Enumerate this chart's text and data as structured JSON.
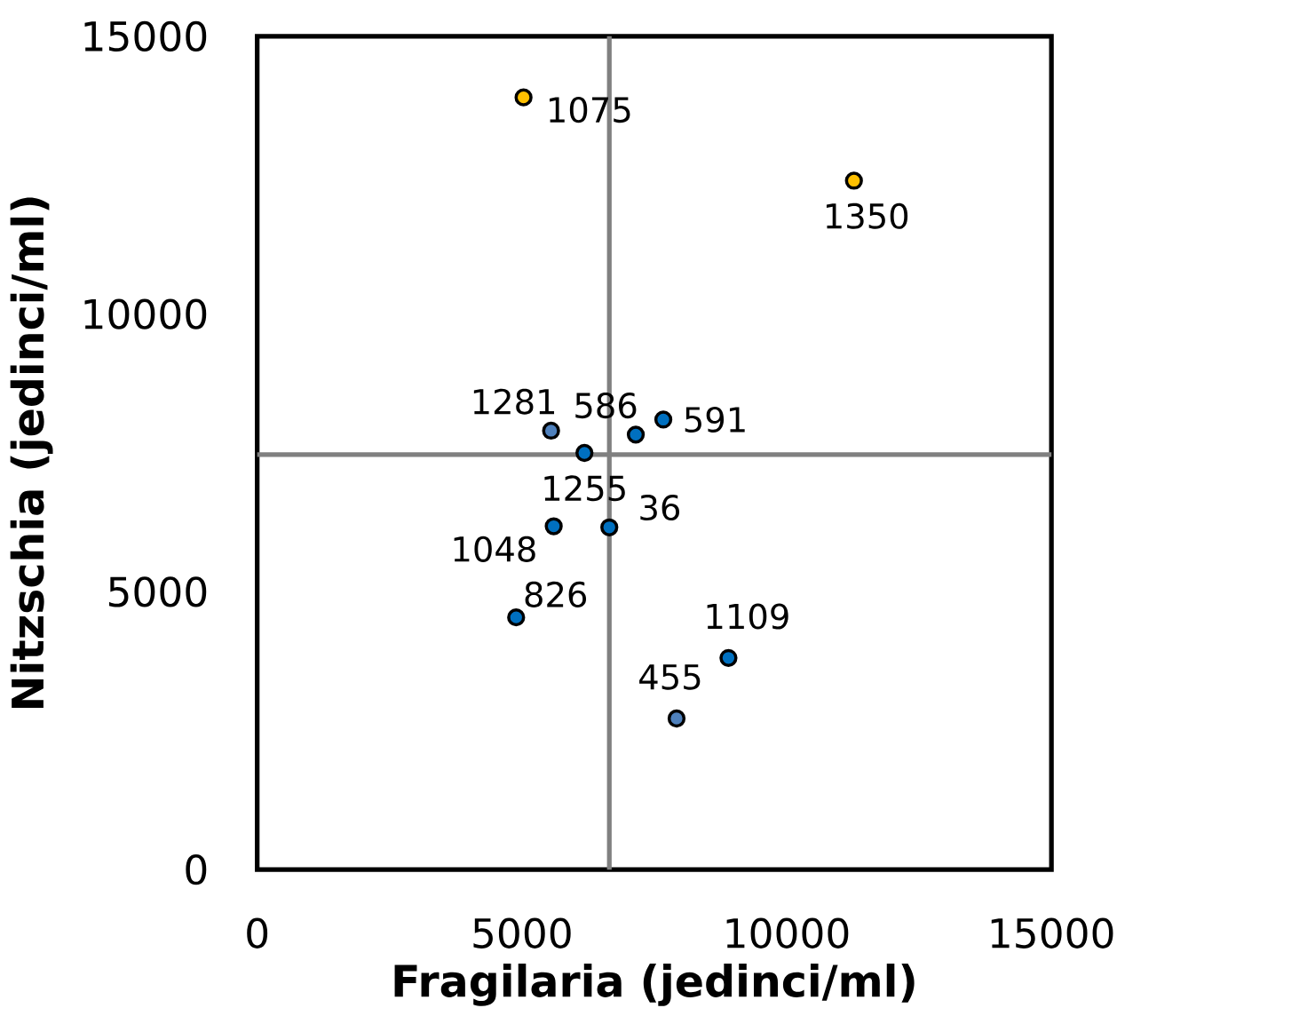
{
  "chart_data": {
    "type": "scatter",
    "xlabel": "Fragilaria (jedinci/ml)",
    "ylabel": "Nitzschia (jedinci/ml)",
    "x": [
      5030,
      11270,
      5550,
      6180,
      7150,
      7670,
      5600,
      6650,
      4890,
      8900,
      7920
    ],
    "values": [
      13900,
      12400,
      7900,
      7500,
      7830,
      8100,
      6180,
      6160,
      4540,
      3810,
      2720
    ],
    "colors": [
      "#ffc000",
      "#ffc000",
      "#4f81bd",
      "#0070c0",
      "#0070c0",
      "#0070c0",
      "#0070c0",
      "#0070c0",
      "#0070c0",
      "#0070c0",
      "#4f81bd"
    ],
    "marker": "circle",
    "xlim": [
      0,
      15000
    ],
    "ylim": [
      0,
      15000
    ],
    "xticks": [
      0,
      5000,
      10000,
      15000
    ],
    "yticks": [
      0,
      5000,
      10000,
      15000
    ],
    "grid": false,
    "ref_lines": [
      {
        "axis": "x",
        "value": 6650,
        "color": "#808080"
      },
      {
        "axis": "y",
        "value": 7470,
        "color": "#808080"
      }
    ],
    "annotations": [
      {
        "text": "1075",
        "x": 5030,
        "y": 13900
      },
      {
        "text": "1350",
        "x": 11270,
        "y": 12400
      },
      {
        "text": "1281",
        "x": 5550,
        "y": 7900
      },
      {
        "text": "1255",
        "x": 6180,
        "y": 7500
      },
      {
        "text": "586",
        "x": 7150,
        "y": 7830
      },
      {
        "text": "591",
        "x": 7670,
        "y": 8100
      },
      {
        "text": "1048",
        "x": 5600,
        "y": 6180
      },
      {
        "text": "36",
        "x": 6650,
        "y": 6160
      },
      {
        "text": "826",
        "x": 4890,
        "y": 4540
      },
      {
        "text": "1109",
        "x": 8900,
        "y": 3810
      },
      {
        "text": "455",
        "x": 7920,
        "y": 2720
      }
    ]
  }
}
